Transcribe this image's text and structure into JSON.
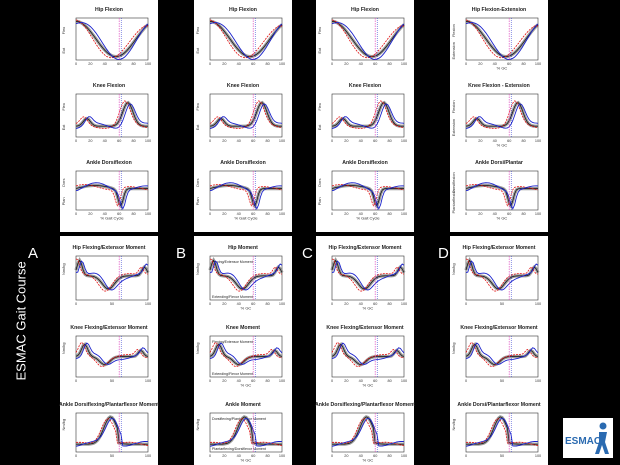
{
  "side_title": "ESMAC Gait Course",
  "letters": [
    "A",
    "B",
    "C",
    "D"
  ],
  "logo_text": "ESMAC",
  "colors": {
    "black": "#111111",
    "gray": "#8a8a8a",
    "red": "#e01010",
    "blue": "#1a22cc",
    "pink": "#e050c0",
    "axis": "#333333"
  },
  "chart_data": [
    {
      "type": "line",
      "title": "Hip Flexion",
      "ylabels": [
        "Flex",
        "Ext"
      ],
      "xlabel": "",
      "xticks": [
        "0",
        "20",
        "40",
        "60",
        "80",
        "100"
      ],
      "vline": 60,
      "shape": "hip"
    },
    {
      "type": "line",
      "title": "Knee Flexion",
      "ylabels": [
        "Flex",
        "Ext"
      ],
      "xlabel": "",
      "xticks": [
        "0",
        "20",
        "40",
        "60",
        "80",
        "100"
      ],
      "vline": 60,
      "shape": "knee"
    },
    {
      "type": "line",
      "title": "Ankle Dorsiflexion",
      "ylabels": [
        "Dors",
        "Plan"
      ],
      "xlabel": "% Gait Cycle",
      "xticks": [
        "0",
        "20",
        "40",
        "60",
        "80",
        "100"
      ],
      "vline": 60,
      "shape": "ankle"
    },
    {
      "type": "line",
      "title": "Hip Flexion",
      "ylabels": [
        "Flex",
        "Ext"
      ],
      "xlabel": "",
      "xticks": [
        "0",
        "20",
        "40",
        "60",
        "80",
        "100"
      ],
      "vline": 60,
      "shape": "hip"
    },
    {
      "type": "line",
      "title": "Knee Flexion",
      "ylabels": [
        "Flex",
        "Ext"
      ],
      "xlabel": "",
      "xticks": [
        "0",
        "20",
        "40",
        "60",
        "80",
        "100"
      ],
      "vline": 60,
      "shape": "knee"
    },
    {
      "type": "line",
      "title": "Ankle Dorsiflexion",
      "ylabels": [
        "Dors",
        "Plan"
      ],
      "xlabel": "% Gait Cycle",
      "xticks": [
        "0",
        "20",
        "40",
        "60",
        "80",
        "100"
      ],
      "vline": 60,
      "shape": "ankle"
    },
    {
      "type": "line",
      "title": "Hip Flexion",
      "ylabels": [
        "Flex",
        "Ext"
      ],
      "xlabel": "",
      "xticks": [
        "0",
        "20",
        "40",
        "60",
        "80",
        "100"
      ],
      "vline": 60,
      "shape": "hip"
    },
    {
      "type": "line",
      "title": "Knee Flexion",
      "ylabels": [
        "Flex",
        "Ext"
      ],
      "xlabel": "",
      "xticks": [
        "0",
        "20",
        "40",
        "60",
        "80",
        "100"
      ],
      "vline": 60,
      "shape": "knee"
    },
    {
      "type": "line",
      "title": "Ankle Dorsiflexion",
      "ylabels": [
        "Dors",
        "Plan"
      ],
      "xlabel": "% Gait Cycle",
      "xticks": [
        "0",
        "20",
        "40",
        "60",
        "80",
        "100"
      ],
      "vline": 60,
      "shape": "ankle"
    },
    {
      "type": "line",
      "title": "Hip Flexion-Extension",
      "ylabels": [
        "Flexion",
        "Extension"
      ],
      "xlabel": "% GC",
      "xticks": [
        "0",
        "20",
        "40",
        "60",
        "80",
        "100"
      ],
      "vline": 60,
      "shape": "hip"
    },
    {
      "type": "line",
      "title": "Knee Flexion - Extension",
      "ylabels": [
        "Flexion",
        "Extension"
      ],
      "xlabel": "% GC",
      "xticks": [
        "0",
        "20",
        "40",
        "60",
        "80",
        "100"
      ],
      "vline": 60,
      "shape": "knee"
    },
    {
      "type": "line",
      "title": "Ankle Dorsi/Plantar",
      "ylabels": [
        "Dorsiflexion",
        "Plantarflexion"
      ],
      "xlabel": "% GC",
      "xticks": [
        "0",
        "20",
        "40",
        "60",
        "80",
        "100"
      ],
      "vline": 60,
      "shape": "ankle"
    },
    {
      "type": "line",
      "title": "Hip Flexing/Extensor Moment",
      "ylabels": [
        "Nm/kg",
        ""
      ],
      "xlabel": "",
      "xticks": [
        "0",
        "50",
        "100"
      ],
      "vline": 60,
      "shape": "hipm"
    },
    {
      "type": "line",
      "title": "Knee Flexing/Extensor Moment",
      "ylabels": [
        "Nm/kg",
        ""
      ],
      "xlabel": "",
      "xticks": [
        "0",
        "50",
        "100"
      ],
      "vline": 60,
      "shape": "kneem"
    },
    {
      "type": "line",
      "title": "Ankle Dorsiflexing/Plantarflexor Moment",
      "ylabels": [
        "Nm/kg",
        ""
      ],
      "xlabel": "",
      "xticks": [
        "0",
        "50",
        "100"
      ],
      "vline": 60,
      "shape": "anklem"
    },
    {
      "type": "line",
      "title": "Hip Moment",
      "ylabels": [
        "Nm/kg",
        ""
      ],
      "xlabel": "% GC",
      "xticks": [
        "0",
        "20",
        "40",
        "60",
        "80",
        "100"
      ],
      "vline": 60,
      "shape": "hipm",
      "annotations": [
        "Flexing/Extensor Moment",
        "Extending/Flexor Moment"
      ]
    },
    {
      "type": "line",
      "title": "Knee Moment",
      "ylabels": [
        "Nm/kg",
        ""
      ],
      "xlabel": "% GC",
      "xticks": [
        "0",
        "20",
        "40",
        "60",
        "80",
        "100"
      ],
      "vline": 60,
      "shape": "kneem",
      "annotations": [
        "Flexing/Extensor Moment",
        "Extending/Flexor Moment"
      ]
    },
    {
      "type": "line",
      "title": "Ankle Moment",
      "ylabels": [
        "Nm/kg",
        ""
      ],
      "xlabel": "% GC",
      "xticks": [
        "0",
        "20",
        "40",
        "60",
        "80",
        "100"
      ],
      "vline": 60,
      "shape": "anklem",
      "annotations": [
        "Dorsiflexing/Plantarflexor Moment",
        "Plantarflexing/Dorsiflexor Moment"
      ]
    },
    {
      "type": "line",
      "title": "Hip Flexing/Extensor Moment",
      "ylabels": [
        "",
        ""
      ],
      "xlabel": "% GC",
      "xticks": [
        "0",
        "20",
        "40",
        "60",
        "80",
        "100"
      ],
      "vline": 60,
      "shape": "hipm"
    },
    {
      "type": "line",
      "title": "Knee Flexing/Extensor Moment",
      "ylabels": [
        "",
        ""
      ],
      "xlabel": "% GC",
      "xticks": [
        "0",
        "20",
        "40",
        "60",
        "80",
        "100"
      ],
      "vline": 60,
      "shape": "kneem"
    },
    {
      "type": "line",
      "title": "Ankle Dorsiflexing/Plantarflexor Moment",
      "ylabels": [
        "",
        ""
      ],
      "xlabel": "% GC",
      "xticks": [
        "0",
        "20",
        "40",
        "60",
        "80",
        "100"
      ],
      "vline": 60,
      "shape": "anklem"
    },
    {
      "type": "line",
      "title": "Hip Flexing/Extensor Moment",
      "ylabels": [
        "Nm/kg",
        ""
      ],
      "xlabel": "",
      "xticks": [
        "0",
        "50",
        "100"
      ],
      "vline": 60,
      "shape": "hipm"
    },
    {
      "type": "line",
      "title": "Knee Flexing/Extensor Moment",
      "ylabels": [
        "Nm/kg",
        ""
      ],
      "xlabel": "",
      "xticks": [
        "0",
        "50",
        "100"
      ],
      "vline": 60,
      "shape": "kneem"
    },
    {
      "type": "line",
      "title": "Ankle Dorsi/Plantarflexor Moment",
      "ylabels": [
        "Nm/kg",
        ""
      ],
      "xlabel": "",
      "xticks": [
        "0",
        "50",
        "100"
      ],
      "vline": 60,
      "shape": "anklem"
    }
  ]
}
